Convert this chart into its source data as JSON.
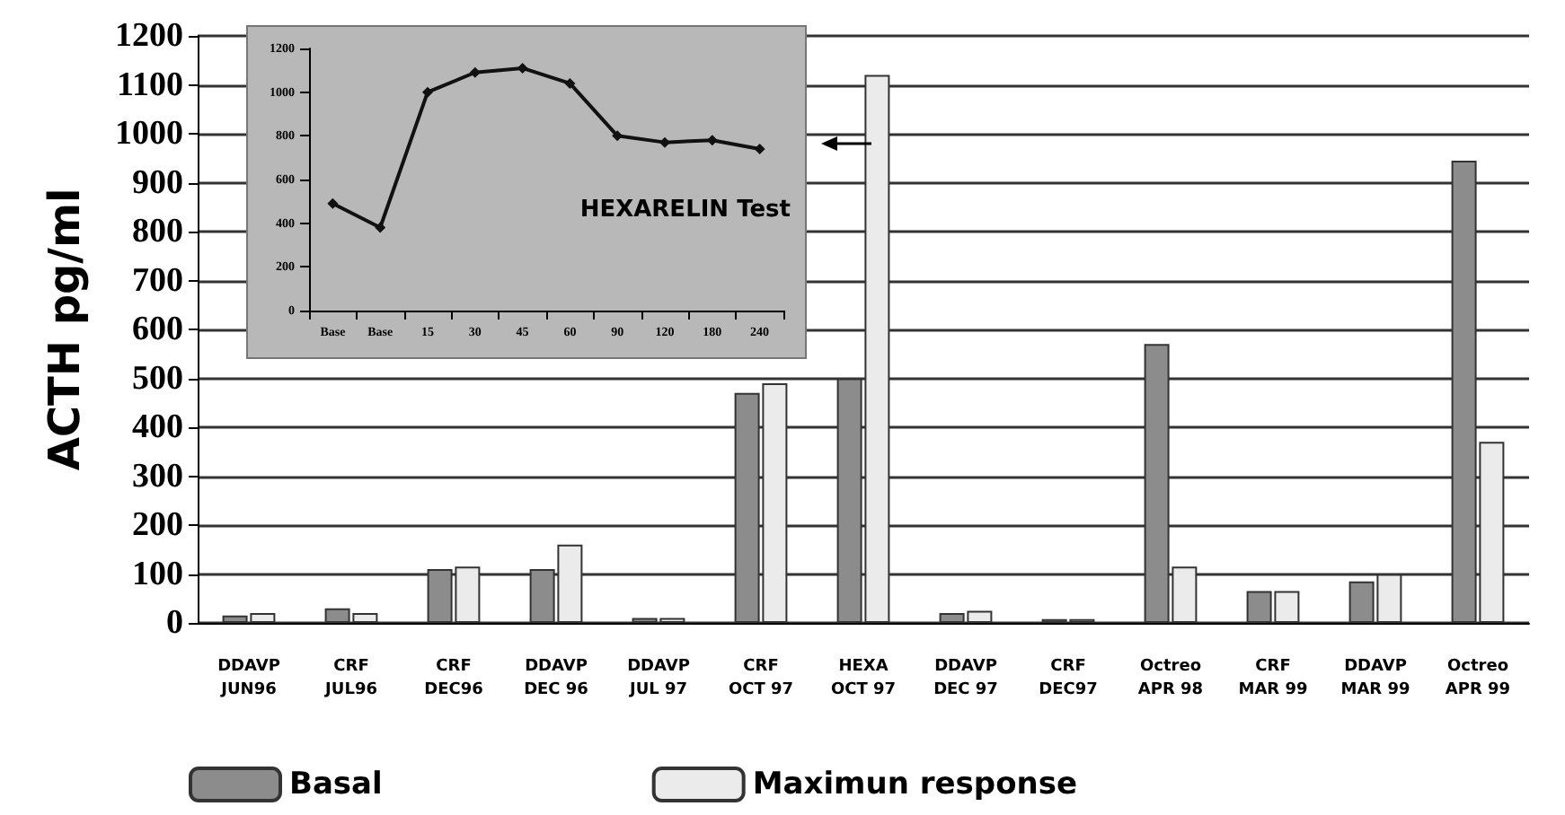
{
  "chart_data": [
    {
      "type": "bar",
      "ylabel": "ACTH pg/ml",
      "categories": [
        "DDAVP\nJUN96",
        "CRF\nJUL96",
        "CRF\nDEC96",
        "DDAVP\nDEC 96",
        "DDAVP\nJUL 97",
        "CRF\nOCT 97",
        "HEXA\nOCT 97",
        "DDAVP\nDEC 97",
        "CRF\nDEC97",
        "Octreo\nAPR 98",
        "CRF\nMAR 99",
        "DDAVP\nMAR 99",
        "Octreo\nAPR 99"
      ],
      "series": [
        {
          "name": "Basal",
          "color": "#8c8c8c",
          "values": [
            15,
            30,
            110,
            110,
            10,
            470,
            500,
            20,
            8,
            570,
            65,
            85,
            945
          ]
        },
        {
          "name": "Maximun response",
          "color": "#ebebeb",
          "values": [
            20,
            20,
            115,
            160,
            10,
            490,
            1120,
            25,
            8,
            115,
            65,
            100,
            370
          ]
        }
      ],
      "ylim": [
        0,
        1200
      ],
      "yticks": [
        0,
        100,
        200,
        300,
        400,
        500,
        600,
        700,
        800,
        900,
        1000,
        1100,
        1200
      ],
      "grid": "y",
      "legend": "bottom"
    },
    {
      "type": "line",
      "categories": [
        "Base",
        "Base",
        "15",
        "30",
        "45",
        "60",
        "90",
        "120",
        "180",
        "240"
      ],
      "series": [
        {
          "color": "#111111",
          "values": [
            490,
            380,
            1000,
            1090,
            1110,
            1040,
            800,
            770,
            780,
            740
          ]
        }
      ],
      "ylim": [
        0,
        1200
      ],
      "yticks": [
        0,
        200,
        400,
        600,
        800,
        1000,
        1200
      ],
      "marker": "diamond",
      "annotations": [
        "HEXARELIN Test"
      ]
    }
  ]
}
